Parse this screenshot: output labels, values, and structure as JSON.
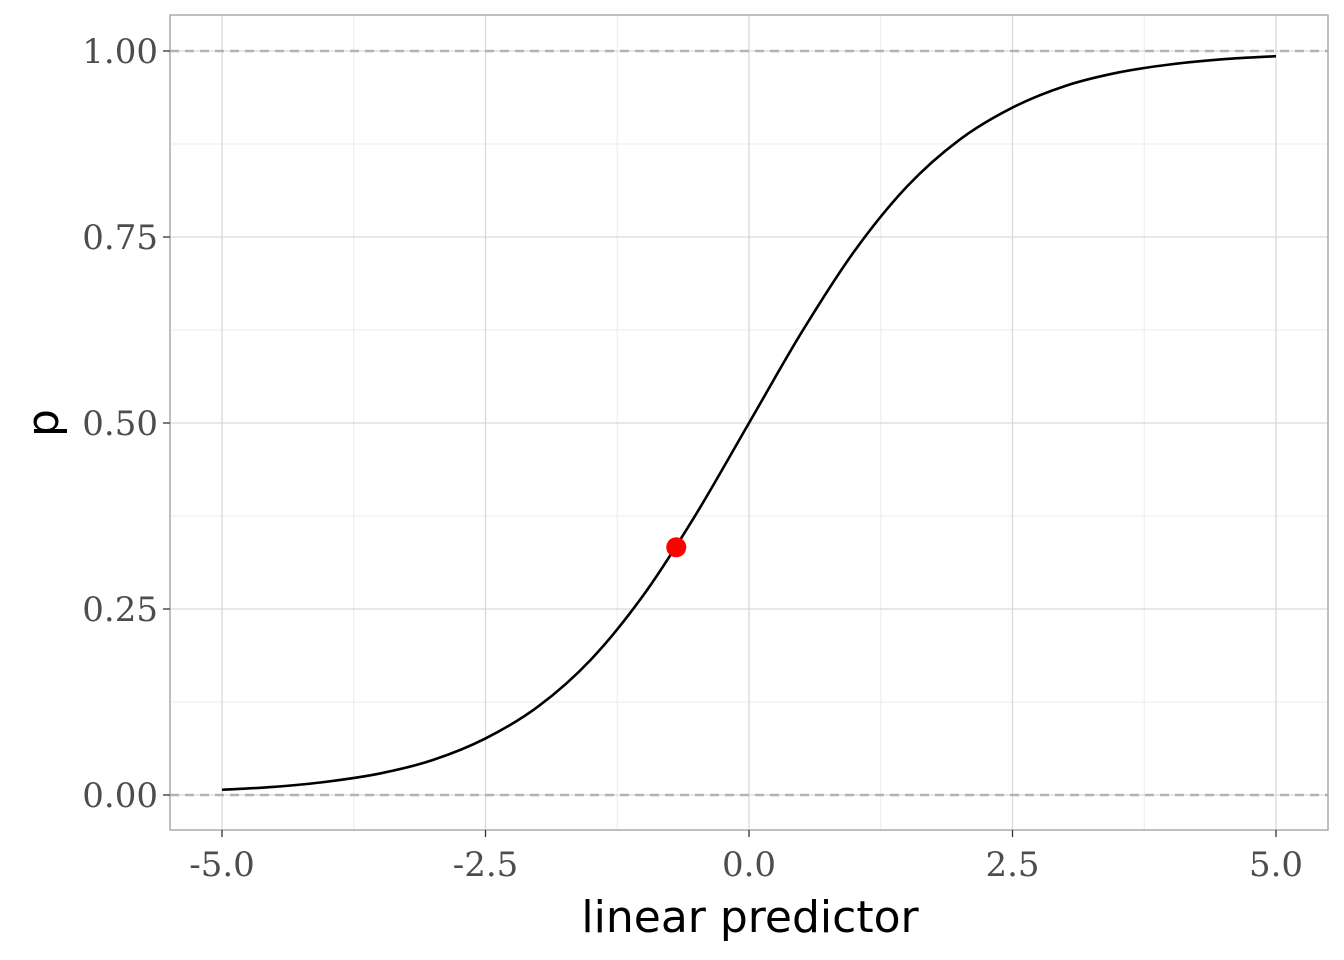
{
  "chart_data": {
    "type": "line",
    "title": "",
    "xlabel": "linear predictor",
    "ylabel": "p",
    "xlim": [
      -5.0,
      5.0
    ],
    "ylim": [
      0.0,
      1.0
    ],
    "x_ticks": [
      "-5.0",
      "-2.5",
      "0.0",
      "2.5",
      "5.0"
    ],
    "y_ticks": [
      "0.00",
      "0.25",
      "0.50",
      "0.75",
      "1.00"
    ],
    "grid": true,
    "reference_lines": [
      {
        "axis": "y",
        "value": 0.0,
        "style": "dashed"
      },
      {
        "axis": "y",
        "value": 1.0,
        "style": "dashed"
      }
    ],
    "series": [
      {
        "kind": "line",
        "x": [
          -5.0,
          -4.5,
          -4.0,
          -3.5,
          -3.0,
          -2.5,
          -2.0,
          -1.5,
          -1.0,
          -0.5,
          0.0,
          0.5,
          1.0,
          1.5,
          2.0,
          2.5,
          3.0,
          3.5,
          4.0,
          4.5,
          5.0
        ],
        "y": [
          0.007,
          0.011,
          0.018,
          0.029,
          0.047,
          0.076,
          0.119,
          0.182,
          0.269,
          0.378,
          0.5,
          0.622,
          0.731,
          0.818,
          0.881,
          0.924,
          0.953,
          0.971,
          0.982,
          0.989,
          0.993
        ]
      },
      {
        "kind": "point",
        "x": [
          -0.69
        ],
        "y": [
          0.333
        ]
      }
    ],
    "colors": {
      "curve": "#000000",
      "point": "#ff0000",
      "reference_line": "#b3b3b3",
      "grid_major": "#d9d9d9",
      "grid_minor": "#ebebeb",
      "panel_border": "#a6a6a6"
    }
  }
}
